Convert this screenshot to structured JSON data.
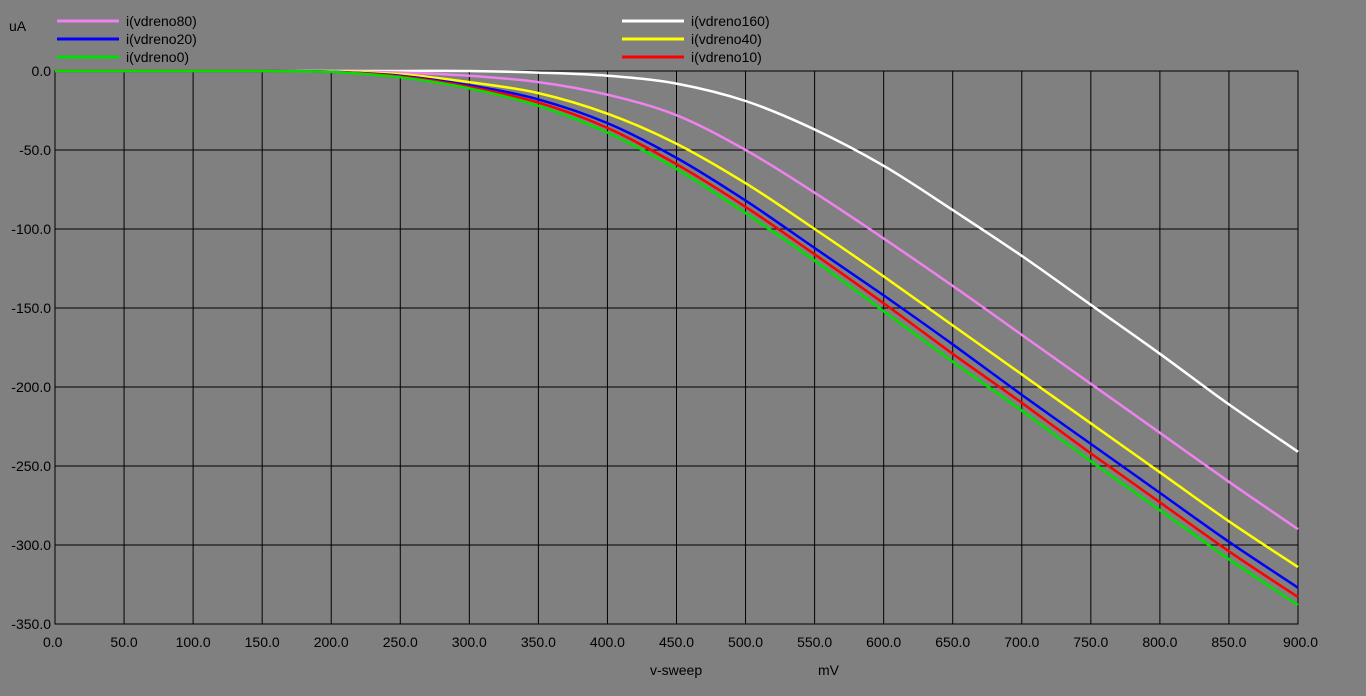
{
  "colors": {
    "background": "#808080",
    "grid": "#000000"
  },
  "chart_data": {
    "type": "line",
    "ylabel_unit": "uA",
    "xlabel": "v-sweep",
    "xlabel_unit": "mV",
    "xlim": [
      0,
      900
    ],
    "ylim": [
      -350,
      0
    ],
    "grid": true,
    "legend_position": "top",
    "x_ticks": [
      "0.0",
      "50.0",
      "100.0",
      "150.0",
      "200.0",
      "250.0",
      "300.0",
      "350.0",
      "400.0",
      "450.0",
      "500.0",
      "550.0",
      "600.0",
      "650.0",
      "700.0",
      "750.0",
      "800.0",
      "850.0",
      "900.0"
    ],
    "y_ticks": [
      "0.0",
      "-50.0",
      "-100.0",
      "-150.0",
      "-200.0",
      "-250.0",
      "-300.0",
      "-350.0"
    ],
    "x": [
      0,
      50,
      100,
      150,
      200,
      250,
      300,
      350,
      400,
      450,
      500,
      550,
      600,
      650,
      700,
      750,
      800,
      850,
      900
    ],
    "series": [
      {
        "name": "i(vdreno80)",
        "color": "#ee82ee",
        "values": [
          0,
          0,
          0,
          0,
          -0.3,
          -1,
          -3,
          -7,
          -15,
          -28,
          -50,
          -77,
          -106,
          -136,
          -167,
          -198,
          -229,
          -260,
          -290
        ]
      },
      {
        "name": "i(vdreno20)",
        "color": "#0000ff",
        "values": [
          0,
          0,
          0,
          0,
          -0.5,
          -3,
          -9,
          -18,
          -33,
          -55,
          -82,
          -112,
          -142,
          -173,
          -205,
          -236,
          -267,
          -298,
          -327
        ]
      },
      {
        "name": "i(vdreno0)",
        "color": "#00e000",
        "values": [
          0,
          0,
          0,
          0,
          -0.6,
          -4,
          -11,
          -22,
          -39,
          -62,
          -90,
          -120,
          -152,
          -184,
          -215,
          -247,
          -278,
          -309,
          -338
        ]
      },
      {
        "name": "i(vdreno160)",
        "color": "#ffffff",
        "values": [
          0,
          0,
          0,
          0,
          0,
          0,
          0,
          -1,
          -3,
          -8,
          -19,
          -37,
          -60,
          -88,
          -117,
          -148,
          -179,
          -211,
          -241
        ]
      },
      {
        "name": "i(vdreno40)",
        "color": "#ffff00",
        "values": [
          0,
          0,
          0,
          0,
          -0.4,
          -2,
          -7,
          -14,
          -27,
          -46,
          -71,
          -100,
          -130,
          -161,
          -192,
          -223,
          -254,
          -285,
          -314
        ]
      },
      {
        "name": "i(vdreno10)",
        "color": "#ff0000",
        "values": [
          0,
          0,
          0,
          0,
          -0.5,
          -3.5,
          -10,
          -20,
          -36,
          -59,
          -86,
          -116,
          -147,
          -179,
          -210,
          -242,
          -273,
          -304,
          -333
        ]
      }
    ]
  }
}
